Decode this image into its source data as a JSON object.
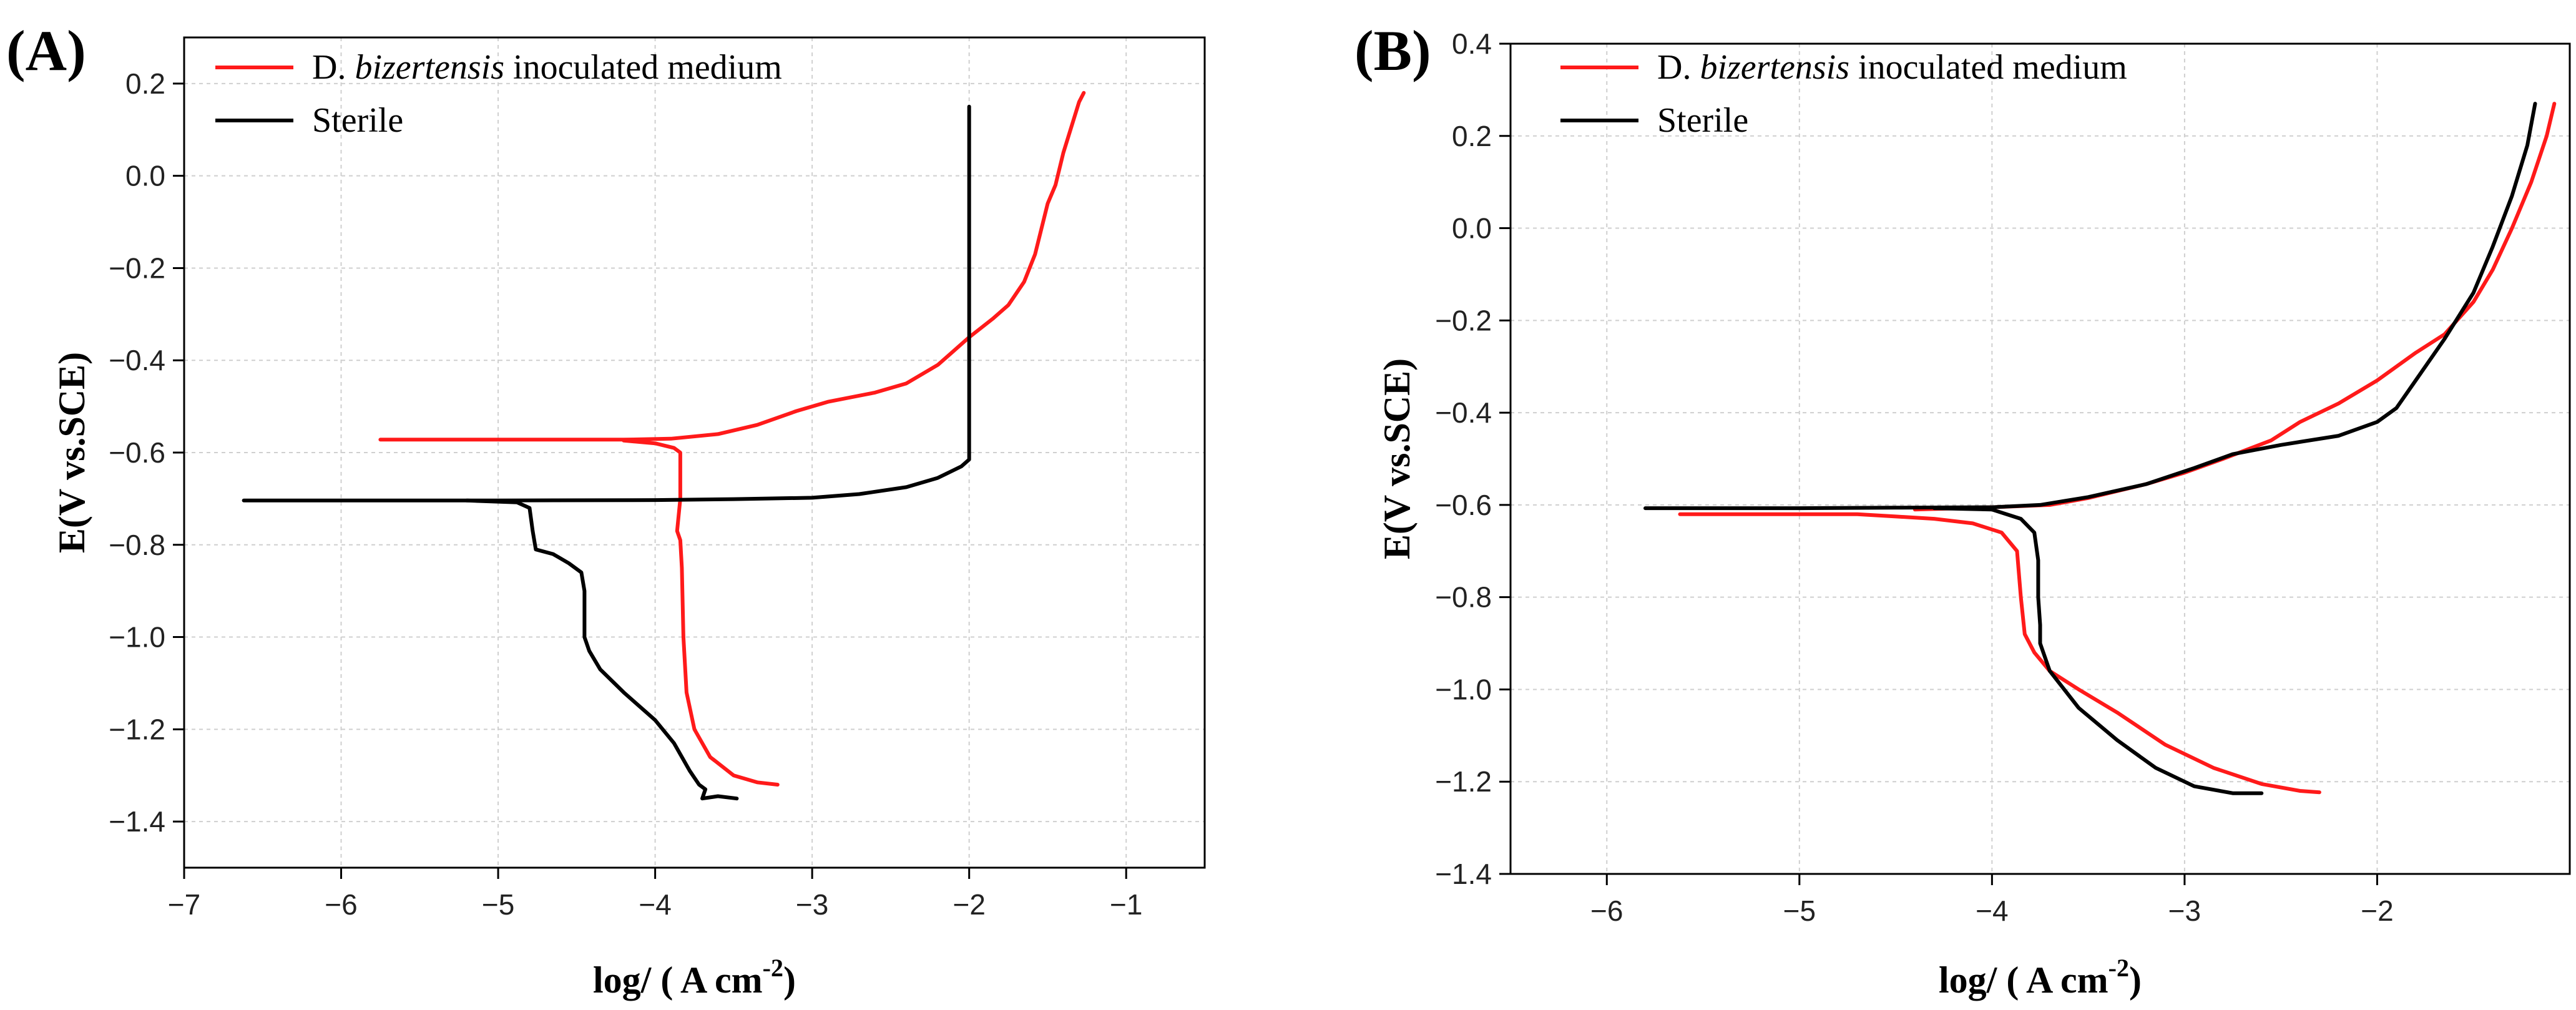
{
  "chart_data": [
    {
      "type": "line",
      "panel_label": "(A)",
      "xlabel": "log/ ( A cm",
      "xlabel_sup": "-2",
      "xlabel_end": ")",
      "ylabel": "E(V vs.SCE)",
      "xlim": [
        -7,
        -0.5
      ],
      "ylim": [
        -1.5,
        0.3
      ],
      "xticks": [
        -7,
        -6,
        -5,
        -4,
        -3,
        -2,
        -1
      ],
      "xtick_labels": [
        "−7",
        "−6",
        "−5",
        "−4",
        "−3",
        "−2",
        "−1"
      ],
      "yticks": [
        -1.4,
        -1.2,
        -1.0,
        -0.8,
        -0.6,
        -0.4,
        -0.2,
        0.0,
        0.2
      ],
      "ytick_labels": [
        "−1.4",
        "−1.2",
        "−1.0",
        "−0.8",
        "−0.6",
        "−0.4",
        "−0.2",
        "0.0",
        "0.2"
      ],
      "grid": true,
      "legend_position": "top-left",
      "series": [
        {
          "name_prefix": "D. ",
          "name_italic": "bizertensis",
          "name_suffix": " inoculated medium",
          "color": "#ff1a1a",
          "points": [
            [
              -5.75,
              -0.572
            ],
            [
              -5.2,
              -0.572
            ],
            [
              -4.6,
              -0.572
            ],
            [
              -4.2,
              -0.572
            ],
            [
              -3.9,
              -0.57
            ],
            [
              -3.6,
              -0.56
            ],
            [
              -3.35,
              -0.54
            ],
            [
              -3.1,
              -0.51
            ],
            [
              -2.9,
              -0.49
            ],
            [
              -2.6,
              -0.47
            ],
            [
              -2.4,
              -0.45
            ],
            [
              -2.2,
              -0.41
            ],
            [
              -2.0,
              -0.35
            ],
            [
              -1.85,
              -0.31
            ],
            [
              -1.75,
              -0.28
            ],
            [
              -1.65,
              -0.23
            ],
            [
              -1.58,
              -0.17
            ],
            [
              -1.5,
              -0.06
            ],
            [
              -1.45,
              -0.02
            ],
            [
              -1.4,
              0.05
            ],
            [
              -1.3,
              0.16
            ],
            [
              -1.27,
              0.18
            ]
          ]
        },
        {
          "name_prefix": "D. ",
          "name_italic": "bizertensis",
          "name_suffix": " inoculated medium",
          "color": "#ff1a1a",
          "points": [
            [
              -4.2,
              -0.574
            ],
            [
              -4.0,
              -0.58
            ],
            [
              -3.88,
              -0.59
            ],
            [
              -3.84,
              -0.6
            ],
            [
              -3.84,
              -0.7
            ],
            [
              -3.86,
              -0.77
            ],
            [
              -3.84,
              -0.79
            ],
            [
              -3.83,
              -0.85
            ],
            [
              -3.82,
              -1.0
            ],
            [
              -3.8,
              -1.12
            ],
            [
              -3.75,
              -1.2
            ],
            [
              -3.65,
              -1.26
            ],
            [
              -3.5,
              -1.3
            ],
            [
              -3.35,
              -1.315
            ],
            [
              -3.22,
              -1.32
            ]
          ]
        },
        {
          "name": "Sterile",
          "color": "#000000",
          "points": [
            [
              -6.62,
              -0.704
            ],
            [
              -6.0,
              -0.704
            ],
            [
              -5.0,
              -0.704
            ],
            [
              -4.0,
              -0.703
            ],
            [
              -3.5,
              -0.701
            ],
            [
              -3.0,
              -0.698
            ],
            [
              -2.7,
              -0.69
            ],
            [
              -2.4,
              -0.675
            ],
            [
              -2.2,
              -0.655
            ],
            [
              -2.05,
              -0.63
            ],
            [
              -2.0,
              -0.615
            ],
            [
              -2.0,
              -0.3
            ],
            [
              -2.0,
              0.0
            ],
            [
              -2.0,
              0.15
            ]
          ]
        },
        {
          "name": "Sterile",
          "color": "#000000",
          "points": [
            [
              -5.2,
              -0.704
            ],
            [
              -4.88,
              -0.708
            ],
            [
              -4.8,
              -0.72
            ],
            [
              -4.78,
              -0.77
            ],
            [
              -4.76,
              -0.81
            ],
            [
              -4.65,
              -0.82
            ],
            [
              -4.55,
              -0.84
            ],
            [
              -4.47,
              -0.86
            ],
            [
              -4.45,
              -0.9
            ],
            [
              -4.45,
              -1.0
            ],
            [
              -4.42,
              -1.03
            ],
            [
              -4.35,
              -1.07
            ],
            [
              -4.2,
              -1.12
            ],
            [
              -4.0,
              -1.18
            ],
            [
              -3.88,
              -1.23
            ],
            [
              -3.78,
              -1.29
            ],
            [
              -3.72,
              -1.32
            ],
            [
              -3.68,
              -1.33
            ],
            [
              -3.7,
              -1.35
            ],
            [
              -3.6,
              -1.345
            ],
            [
              -3.48,
              -1.35
            ]
          ]
        }
      ]
    },
    {
      "type": "line",
      "panel_label": "(B)",
      "xlabel": "log/ ( A cm",
      "xlabel_sup": "-2",
      "xlabel_end": ")",
      "ylabel": "E(V vs.SCE)",
      "xlim": [
        -6.5,
        -1
      ],
      "ylim": [
        -1.4,
        0.4
      ],
      "xticks": [
        -6,
        -5,
        -4,
        -3,
        -2
      ],
      "xtick_labels": [
        "−6",
        "−5",
        "−4",
        "−3",
        "−2"
      ],
      "yticks": [
        -1.4,
        -1.2,
        -1.0,
        -0.8,
        -0.6,
        -0.4,
        -0.2,
        0.0,
        0.2,
        0.4
      ],
      "ytick_labels": [
        "−1.4",
        "−1.2",
        "−1.0",
        "−0.8",
        "−0.6",
        "−0.4",
        "−0.2",
        "0.0",
        "0.2",
        "0.4"
      ],
      "grid": true,
      "legend_position": "top-left",
      "series": [
        {
          "name_prefix": "D. ",
          "name_italic": "bizertensis",
          "name_suffix": " inoculated medium",
          "color": "#ff1a1a",
          "points": [
            [
              -5.62,
              -0.62
            ],
            [
              -5.0,
              -0.62
            ],
            [
              -4.7,
              -0.62
            ],
            [
              -4.5,
              -0.625
            ],
            [
              -4.3,
              -0.63
            ],
            [
              -4.1,
              -0.64
            ],
            [
              -3.95,
              -0.66
            ],
            [
              -3.87,
              -0.7
            ],
            [
              -3.85,
              -0.8
            ],
            [
              -3.83,
              -0.88
            ],
            [
              -3.78,
              -0.92
            ],
            [
              -3.7,
              -0.96
            ],
            [
              -3.55,
              -1.0
            ],
            [
              -3.35,
              -1.05
            ],
            [
              -3.1,
              -1.12
            ],
            [
              -2.85,
              -1.17
            ],
            [
              -2.6,
              -1.205
            ],
            [
              -2.4,
              -1.22
            ],
            [
              -2.3,
              -1.223
            ]
          ]
        },
        {
          "name_prefix": "D. ",
          "name_italic": "bizertensis",
          "name_suffix": " inoculated medium",
          "color": "#ff1a1a",
          "points": [
            [
              -4.4,
              -0.61
            ],
            [
              -4.0,
              -0.605
            ],
            [
              -3.7,
              -0.6
            ],
            [
              -3.5,
              -0.585
            ],
            [
              -3.2,
              -0.555
            ],
            [
              -3.0,
              -0.53
            ],
            [
              -2.8,
              -0.5
            ],
            [
              -2.55,
              -0.46
            ],
            [
              -2.4,
              -0.42
            ],
            [
              -2.2,
              -0.38
            ],
            [
              -2.0,
              -0.33
            ],
            [
              -1.8,
              -0.27
            ],
            [
              -1.65,
              -0.23
            ],
            [
              -1.5,
              -0.16
            ],
            [
              -1.4,
              -0.09
            ],
            [
              -1.3,
              0.0
            ],
            [
              -1.2,
              0.1
            ],
            [
              -1.12,
              0.2
            ],
            [
              -1.08,
              0.27
            ]
          ]
        },
        {
          "name": "Sterile",
          "color": "#000000",
          "points": [
            [
              -5.8,
              -0.607
            ],
            [
              -5.0,
              -0.607
            ],
            [
              -4.5,
              -0.606
            ],
            [
              -4.0,
              -0.605
            ],
            [
              -3.75,
              -0.6
            ],
            [
              -3.5,
              -0.583
            ],
            [
              -3.2,
              -0.555
            ],
            [
              -2.95,
              -0.52
            ],
            [
              -2.75,
              -0.49
            ],
            [
              -2.5,
              -0.47
            ],
            [
              -2.2,
              -0.45
            ],
            [
              -2.0,
              -0.42
            ],
            [
              -1.9,
              -0.39
            ],
            [
              -1.8,
              -0.33
            ],
            [
              -1.65,
              -0.24
            ],
            [
              -1.5,
              -0.14
            ],
            [
              -1.4,
              -0.04
            ],
            [
              -1.3,
              0.07
            ],
            [
              -1.22,
              0.18
            ],
            [
              -1.18,
              0.27
            ]
          ]
        },
        {
          "name": "Sterile",
          "color": "#000000",
          "points": [
            [
              -4.3,
              -0.607
            ],
            [
              -4.0,
              -0.61
            ],
            [
              -3.85,
              -0.63
            ],
            [
              -3.78,
              -0.66
            ],
            [
              -3.76,
              -0.72
            ],
            [
              -3.76,
              -0.8
            ],
            [
              -3.75,
              -0.86
            ],
            [
              -3.75,
              -0.9
            ],
            [
              -3.7,
              -0.96
            ],
            [
              -3.55,
              -1.04
            ],
            [
              -3.35,
              -1.11
            ],
            [
              -3.15,
              -1.17
            ],
            [
              -2.95,
              -1.21
            ],
            [
              -2.75,
              -1.225
            ],
            [
              -2.6,
              -1.225
            ]
          ]
        }
      ]
    }
  ]
}
